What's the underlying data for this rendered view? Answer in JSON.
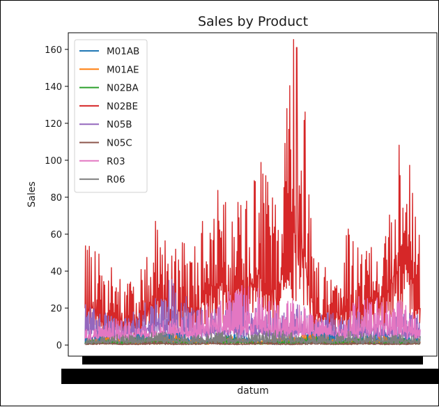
{
  "chart_data": {
    "type": "line",
    "title": "Sales by Product",
    "xlabel": "datum",
    "ylabel": "Sales",
    "ylim": [
      -6,
      169
    ],
    "yticks": [
      0,
      20,
      40,
      60,
      80,
      100,
      120,
      140,
      160
    ],
    "grid": false,
    "legend_position": "upper-left",
    "x_tick_labels_note": "",
    "series": [
      {
        "name": "M01AB",
        "color": "#1f77b4",
        "values": [
          3,
          4,
          2,
          5,
          3,
          6,
          4,
          3,
          5,
          4,
          3,
          2,
          4,
          6,
          5,
          3,
          4,
          5,
          3,
          4
        ]
      },
      {
        "name": "M01AE",
        "color": "#ff7f0e",
        "values": [
          2,
          3,
          4,
          2,
          3,
          5,
          3,
          2,
          4,
          3,
          2,
          3,
          4,
          5,
          3,
          2,
          3,
          4,
          2,
          3
        ]
      },
      {
        "name": "N02BA",
        "color": "#2ca02c",
        "values": [
          2,
          3,
          2,
          4,
          3,
          3,
          2,
          3,
          4,
          3,
          2,
          3,
          3,
          4,
          2,
          3,
          3,
          2,
          3,
          2
        ]
      },
      {
        "name": "N02BE",
        "color": "#d62728",
        "values": [
          45,
          38,
          30,
          28,
          55,
          48,
          42,
          65,
          70,
          60,
          85,
          58,
          161,
          40,
          32,
          52,
          45,
          55,
          100,
          45
        ]
      },
      {
        "name": "N05B",
        "color": "#9467bd",
        "values": [
          18,
          15,
          12,
          16,
          22,
          30,
          20,
          14,
          18,
          22,
          16,
          14,
          18,
          12,
          15,
          16,
          14,
          12,
          15,
          14
        ]
      },
      {
        "name": "N05C",
        "color": "#8c564b",
        "values": [
          1,
          2,
          1,
          1,
          2,
          1,
          1,
          2,
          1,
          1,
          2,
          1,
          1,
          2,
          1,
          1,
          2,
          1,
          1,
          2
        ]
      },
      {
        "name": "R03",
        "color": "#e377c2",
        "values": [
          8,
          10,
          12,
          9,
          10,
          12,
          14,
          22,
          24,
          26,
          25,
          18,
          20,
          12,
          10,
          18,
          24,
          22,
          20,
          10
        ]
      },
      {
        "name": "R06",
        "color": "#7f7f7f",
        "values": [
          3,
          4,
          5,
          4,
          6,
          5,
          4,
          5,
          6,
          5,
          6,
          7,
          5,
          4,
          5,
          6,
          5,
          4,
          5,
          4
        ]
      }
    ]
  }
}
